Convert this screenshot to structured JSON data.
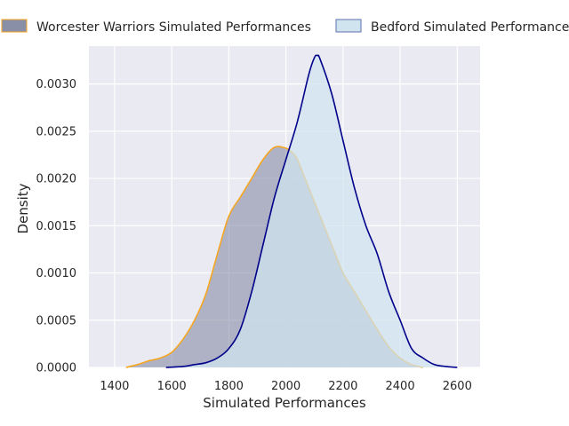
{
  "chart_data": {
    "type": "area",
    "title": "",
    "xlabel": "Simulated Performances",
    "ylabel": "Density",
    "xlim": [
      1310,
      2680
    ],
    "ylim": [
      0,
      0.0034
    ],
    "x_ticks": [
      1400,
      1600,
      1800,
      2000,
      2200,
      2400,
      2600
    ],
    "x_tick_labels": [
      "1400",
      "1600",
      "1800",
      "2000",
      "2200",
      "2400",
      "2600"
    ],
    "y_ticks": [
      0,
      0.0005,
      0.001,
      0.0015,
      0.002,
      0.0025,
      0.003
    ],
    "y_tick_labels": [
      "0.0000",
      "0.0005",
      "0.0010",
      "0.0015",
      "0.0020",
      "0.0025",
      "0.0030"
    ],
    "grid": true,
    "legend_position": "top, above plot",
    "series": [
      {
        "name": "Worcester Warriors Simulated Performances",
        "fill_color": "#8a8fa8",
        "line_color": "#f5a623",
        "x": [
          1440,
          1480,
          1520,
          1560,
          1600,
          1640,
          1680,
          1720,
          1760,
          1800,
          1840,
          1880,
          1920,
          1960,
          2000,
          2020,
          2040,
          2080,
          2120,
          2160,
          2200,
          2240,
          2280,
          2320,
          2360,
          2400,
          2440,
          2480
        ],
        "y": [
          0.0,
          3e-05,
          7e-05,
          0.0001,
          0.00016,
          0.0003,
          0.0005,
          0.00078,
          0.0012,
          0.0016,
          0.0018,
          0.002,
          0.0022,
          0.00233,
          0.00232,
          0.00228,
          0.0022,
          0.0019,
          0.0016,
          0.0013,
          0.001,
          0.0008,
          0.0006,
          0.0004,
          0.00022,
          0.0001,
          3e-05,
          0.0
        ]
      },
      {
        "name": "Bedford Simulated Performances",
        "fill_color": "#d0e4ef",
        "line_color": "#00008b",
        "x": [
          1580,
          1640,
          1680,
          1720,
          1760,
          1800,
          1840,
          1880,
          1920,
          1960,
          2000,
          2040,
          2080,
          2100,
          2110,
          2120,
          2160,
          2200,
          2240,
          2280,
          2320,
          2360,
          2400,
          2440,
          2480,
          2520,
          2560,
          2600
        ],
        "y": [
          0.0,
          1e-05,
          3e-05,
          5e-05,
          0.0001,
          0.0002,
          0.0004,
          0.0008,
          0.0013,
          0.0018,
          0.0022,
          0.0026,
          0.0031,
          0.00328,
          0.0033,
          0.00326,
          0.0029,
          0.0024,
          0.0019,
          0.0015,
          0.0012,
          0.0008,
          0.0005,
          0.0002,
          0.0001,
          3e-05,
          1e-05,
          0.0
        ]
      }
    ]
  }
}
